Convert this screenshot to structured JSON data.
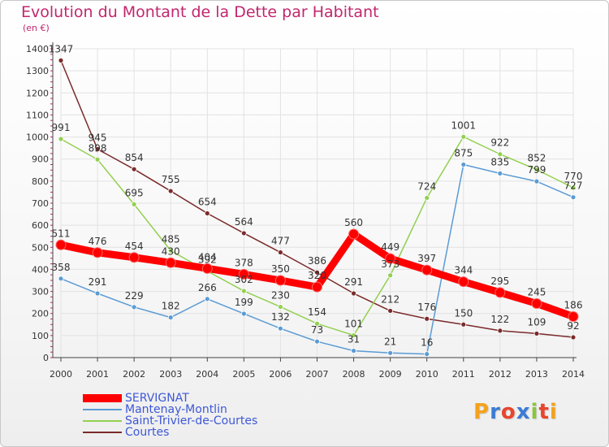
{
  "header": {
    "title": "Evolution du Montant de la Dette par Habitant",
    "unit": "(en €)"
  },
  "logo": {
    "text": "Proxiti",
    "colors": [
      "#f4a21c",
      "#3a7bd5",
      "#e8452c",
      "#3a7bd5",
      "#8bc53f",
      "#e8452c",
      "#f4a21c"
    ]
  },
  "chart_data": {
    "type": "line",
    "title": "Evolution du Montant de la Dette par Habitant",
    "ylabel": "(en €)",
    "xlabel": "",
    "x": [
      "2000",
      "2001",
      "2002",
      "2003",
      "2004",
      "2005",
      "2006",
      "2007",
      "2008",
      "2009",
      "2010",
      "2011",
      "2012",
      "2013",
      "2014"
    ],
    "ylim": [
      0,
      1400
    ],
    "yticks": [
      0,
      100,
      200,
      300,
      400,
      500,
      600,
      700,
      800,
      900,
      1000,
      1100,
      1200,
      1300,
      1400
    ],
    "grid": true,
    "legend": "bottom-left",
    "series": [
      {
        "name": "SERVIGNAT",
        "color": "#ff0000",
        "values": [
          511,
          476,
          454,
          430,
          404,
          378,
          350,
          320,
          560,
          449,
          397,
          344,
          295,
          245,
          186
        ],
        "labels": [
          "511",
          "476",
          "454",
          "430",
          "404",
          "378",
          "350",
          "320",
          "560",
          "449",
          "397",
          "344",
          "295",
          "245",
          "186"
        ]
      },
      {
        "name": "Mantenay-Montlin",
        "color": "#5b9bd5",
        "values": [
          358,
          291,
          229,
          182,
          266,
          199,
          132,
          73,
          31,
          21,
          16,
          875,
          835,
          799,
          727
        ],
        "labels": [
          "358",
          "291",
          "229",
          "182",
          "266",
          "199",
          "132",
          "73",
          "31",
          "21",
          "16",
          "875",
          "835",
          "799",
          "727"
        ]
      },
      {
        "name": "Saint-Trivier-de-Courtes",
        "color": "#92d050",
        "values": [
          991,
          898,
          695,
          485,
          392,
          302,
          230,
          154,
          101,
          373,
          724,
          1001,
          922,
          852,
          770
        ],
        "labels": [
          "991",
          "898",
          "695",
          "485",
          "392",
          "302",
          "230",
          "154",
          "101",
          "373",
          "724",
          "1001",
          "922",
          "852",
          "770"
        ]
      },
      {
        "name": "Courtes",
        "color": "#7b2a2a",
        "values": [
          1347,
          945,
          854,
          755,
          654,
          564,
          477,
          386,
          291,
          212,
          176,
          150,
          122,
          109,
          92
        ],
        "labels": [
          "1347",
          "945",
          "854",
          "755",
          "654",
          "564",
          "477",
          "386",
          "291",
          "212",
          "176",
          "150",
          "122",
          "109",
          "92"
        ]
      }
    ]
  }
}
